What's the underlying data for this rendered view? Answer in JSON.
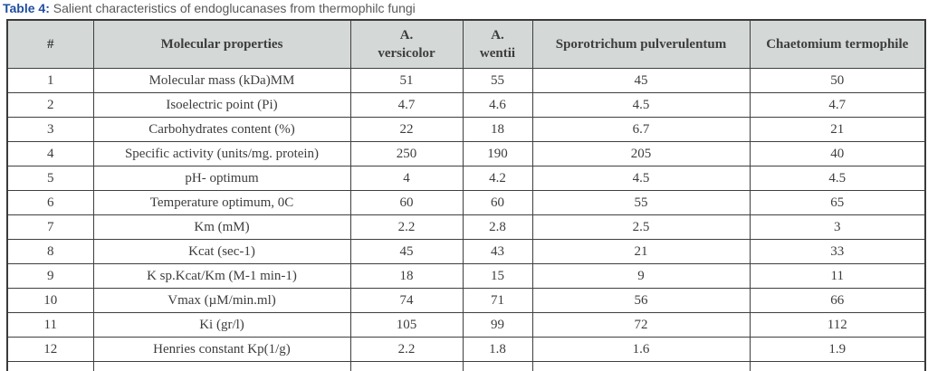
{
  "title": {
    "label": "Table 4:",
    "text": " Salient characteristics of endoglucanases from thermophilc fungi"
  },
  "table": {
    "columns": [
      "#",
      "Molecular properties",
      "A.\nversicolor",
      "A.\nwentii",
      "Sporotrichum pulverulentum",
      "Chaetomium termophile"
    ],
    "rows": [
      {
        "num": "1",
        "property": "Molecular mass (kDa)MM",
        "values": [
          "51",
          "55",
          "45",
          "50"
        ]
      },
      {
        "num": "2",
        "property": "Isoelectric point (Pi)",
        "values": [
          "4.7",
          "4.6",
          "4.5",
          "4.7"
        ]
      },
      {
        "num": "3",
        "property": "Carbohydrates content (%)",
        "values": [
          "22",
          "18",
          "6.7",
          "21"
        ]
      },
      {
        "num": "4",
        "property": "Specific activity (units/mg. protein)",
        "values": [
          "250",
          "190",
          "205",
          "40"
        ]
      },
      {
        "num": "5",
        "property": "pH- optimum",
        "values": [
          "4",
          "4.2",
          "4.5",
          "4.5"
        ]
      },
      {
        "num": "6",
        "property": "Temperature optimum, 0C",
        "values": [
          "60",
          "60",
          "55",
          "65"
        ]
      },
      {
        "num": "7",
        "property": "Km (mM)",
        "values": [
          "2.2",
          "2.8",
          "2.5",
          "3"
        ]
      },
      {
        "num": "8",
        "property": "Kcat (sec-1)",
        "values": [
          "45",
          "43",
          "21",
          "33"
        ]
      },
      {
        "num": "9",
        "property": "K sp.Kcat/Km (M-1 min-1)",
        "values": [
          "18",
          "15",
          "9",
          "11"
        ]
      },
      {
        "num": "10",
        "property": "Vmax  (µM/min.ml)",
        "values": [
          "74",
          "71",
          "56",
          "66"
        ]
      },
      {
        "num": "11",
        "property": "Ki (gr/l)",
        "values": [
          "105",
          "99",
          "72",
          "112"
        ]
      },
      {
        "num": "12",
        "property": "Henries constant Kp(1/g)",
        "values": [
          "2.2",
          "1.8",
          "1.6",
          "1.9"
        ]
      }
    ]
  },
  "colors": {
    "title_blue": "#1f4e9f",
    "title_gray": "#5a5a5a",
    "header_bg": "#d4d8d7",
    "border": "#3a3a3a",
    "text": "#3d3d3d"
  }
}
